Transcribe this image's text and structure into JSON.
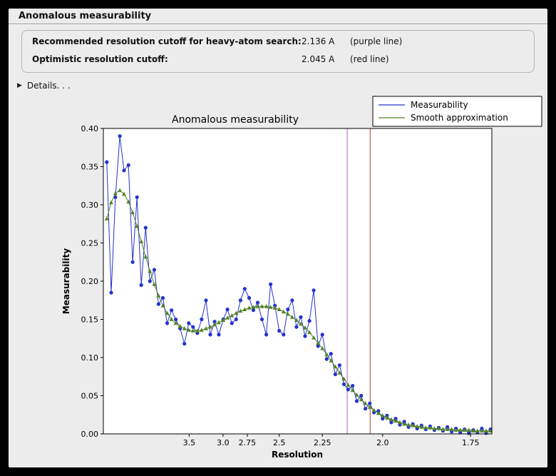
{
  "window": {
    "title": "Anomalous measurability"
  },
  "info": {
    "rows": [
      {
        "label": "Recommended resolution cutoff for heavy-atom search:",
        "value": "2.136 A",
        "note": "(purple line)"
      },
      {
        "label": "Optimistic resolution cutoff:",
        "value": "2.045 A",
        "note": "(red line)"
      }
    ]
  },
  "details": {
    "label": "Details. . ."
  },
  "chart_data": {
    "type": "line",
    "title": "Anomalous measurability",
    "xlabel": "Resolution",
    "ylabel": "Measurability",
    "x_axis": {
      "scale": "inverse_d_squared",
      "tick_d": [
        3.5,
        3.0,
        2.75,
        2.5,
        2.25,
        2.0,
        1.75
      ],
      "tick_labels": [
        "3.5",
        "3.0",
        "2.75",
        "2.5",
        "2.25",
        "2.0",
        "1.75"
      ],
      "range_s": [
        0.007,
        0.345
      ]
    },
    "y_axis": {
      "ticks": [
        0.0,
        0.05,
        0.1,
        0.15,
        0.2,
        0.25,
        0.3,
        0.35,
        0.4
      ],
      "range": [
        0.0,
        0.4
      ]
    },
    "legend": {
      "position": "top-right"
    },
    "vlines": [
      {
        "d": 2.136,
        "color": "#b060b8",
        "note": "purple line"
      },
      {
        "d": 2.045,
        "color": "#b04030",
        "note": "red line"
      }
    ],
    "s_values": [
      0.01,
      0.0138,
      0.0175,
      0.0213,
      0.025,
      0.0288,
      0.0325,
      0.0363,
      0.04,
      0.0438,
      0.0475,
      0.0513,
      0.055,
      0.0588,
      0.0625,
      0.0663,
      0.07,
      0.0738,
      0.0775,
      0.0813,
      0.085,
      0.0888,
      0.0925,
      0.0963,
      0.1,
      0.1038,
      0.1075,
      0.1113,
      0.115,
      0.1188,
      0.1225,
      0.1263,
      0.13,
      0.1338,
      0.1375,
      0.1413,
      0.145,
      0.1488,
      0.1525,
      0.1563,
      0.16,
      0.1638,
      0.1675,
      0.1713,
      0.175,
      0.1788,
      0.1825,
      0.1863,
      0.19,
      0.1938,
      0.1975,
      0.2013,
      0.205,
      0.2088,
      0.2125,
      0.2163,
      0.22,
      0.2238,
      0.2275,
      0.2313,
      0.235,
      0.2388,
      0.2425,
      0.2463,
      0.25,
      0.2538,
      0.2575,
      0.2613,
      0.265,
      0.2688,
      0.2725,
      0.2763,
      0.28,
      0.2838,
      0.2875,
      0.2913,
      0.295,
      0.2988,
      0.3025,
      0.3063,
      0.31,
      0.3138,
      0.3175,
      0.3213,
      0.325,
      0.3288,
      0.3325,
      0.3363,
      0.34,
      0.3438
    ],
    "series": [
      {
        "name": "Measurability",
        "color": "#2433cc",
        "marker": "circle",
        "values": [
          0.356,
          0.185,
          0.31,
          0.39,
          0.345,
          0.352,
          0.225,
          0.31,
          0.195,
          0.27,
          0.2,
          0.215,
          0.17,
          0.178,
          0.145,
          0.162,
          0.15,
          0.138,
          0.118,
          0.145,
          0.14,
          0.132,
          0.15,
          0.175,
          0.13,
          0.147,
          0.13,
          0.15,
          0.163,
          0.145,
          0.15,
          0.175,
          0.19,
          0.178,
          0.162,
          0.172,
          0.15,
          0.13,
          0.196,
          0.168,
          0.135,
          0.13,
          0.163,
          0.175,
          0.14,
          0.153,
          0.128,
          0.148,
          0.188,
          0.115,
          0.13,
          0.098,
          0.105,
          0.078,
          0.09,
          0.065,
          0.058,
          0.063,
          0.043,
          0.05,
          0.033,
          0.04,
          0.028,
          0.03,
          0.02,
          0.024,
          0.015,
          0.02,
          0.012,
          0.016,
          0.009,
          0.013,
          0.007,
          0.011,
          0.006,
          0.01,
          0.005,
          0.008,
          0.004,
          0.009,
          0.003,
          0.007,
          0.002,
          0.006,
          0.001,
          0.005,
          0.002,
          0.007,
          0.001,
          0.006
        ]
      },
      {
        "name": "Smooth approximation",
        "color": "#538427",
        "marker": "triangle",
        "values": [
          0.282,
          0.303,
          0.315,
          0.319,
          0.314,
          0.304,
          0.29,
          0.272,
          0.252,
          0.232,
          0.213,
          0.196,
          0.181,
          0.168,
          0.158,
          0.15,
          0.145,
          0.141,
          0.138,
          0.136,
          0.135,
          0.135,
          0.136,
          0.138,
          0.14,
          0.143,
          0.146,
          0.149,
          0.152,
          0.155,
          0.158,
          0.161,
          0.163,
          0.165,
          0.166,
          0.167,
          0.167,
          0.167,
          0.166,
          0.165,
          0.163,
          0.16,
          0.157,
          0.153,
          0.149,
          0.144,
          0.139,
          0.133,
          0.126,
          0.119,
          0.112,
          0.104,
          0.096,
          0.088,
          0.08,
          0.072,
          0.064,
          0.057,
          0.051,
          0.045,
          0.04,
          0.035,
          0.031,
          0.027,
          0.024,
          0.021,
          0.019,
          0.017,
          0.015,
          0.013,
          0.012,
          0.011,
          0.01,
          0.009,
          0.008,
          0.008,
          0.007,
          0.007,
          0.006,
          0.006,
          0.006,
          0.005,
          0.005,
          0.005,
          0.005,
          0.004,
          0.004,
          0.004,
          0.004,
          0.004
        ]
      }
    ]
  }
}
